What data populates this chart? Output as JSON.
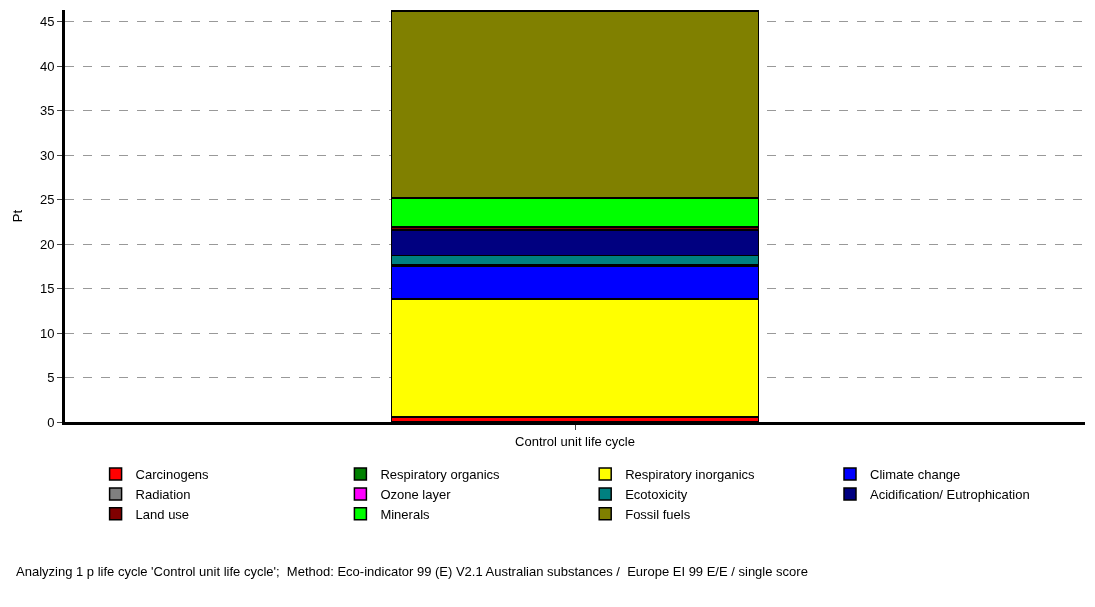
{
  "chart_data": {
    "type": "bar",
    "stacked": true,
    "ylabel": "Pt",
    "categories": [
      "Control unit life cycle"
    ],
    "ylim": [
      0,
      46.3
    ],
    "yticks": [
      0,
      5,
      10,
      15,
      20,
      25,
      30,
      35,
      40,
      45
    ],
    "grid": "y",
    "legend": "bottom",
    "series": [
      {
        "name": "Carcinogens",
        "color": "#ff0000",
        "values": [
          0.5
        ]
      },
      {
        "name": "Respiratory organics",
        "color": "#008000",
        "values": [
          0.1
        ]
      },
      {
        "name": "Respiratory inorganics",
        "color": "#ffff00",
        "values": [
          13.2
        ]
      },
      {
        "name": "Climate change",
        "color": "#0000ff",
        "values": [
          3.7
        ]
      },
      {
        "name": "Radiation",
        "color": "#808080",
        "values": [
          0.1
        ]
      },
      {
        "name": "Ozone layer",
        "color": "#ff00ff",
        "values": [
          0.1
        ]
      },
      {
        "name": "Ecotoxicity",
        "color": "#008080",
        "values": [
          1.0
        ]
      },
      {
        "name": "Acidification/ Eutrophication",
        "color": "#000080",
        "values": [
          2.9
        ]
      },
      {
        "name": "Land use",
        "color": "#800000",
        "values": [
          0.3
        ]
      },
      {
        "name": "Minerals",
        "color": "#00ff00",
        "values": [
          3.3
        ]
      },
      {
        "name": "Fossil fuels",
        "color": "#808000",
        "values": [
          21.0
        ]
      }
    ],
    "annotations": [
      "Analyzing 1 p life cycle 'Control unit life cycle';  Method: Eco-indicator 99 (E) V2.1 Australian substances /  Europe EI 99 E/E / single score"
    ]
  }
}
